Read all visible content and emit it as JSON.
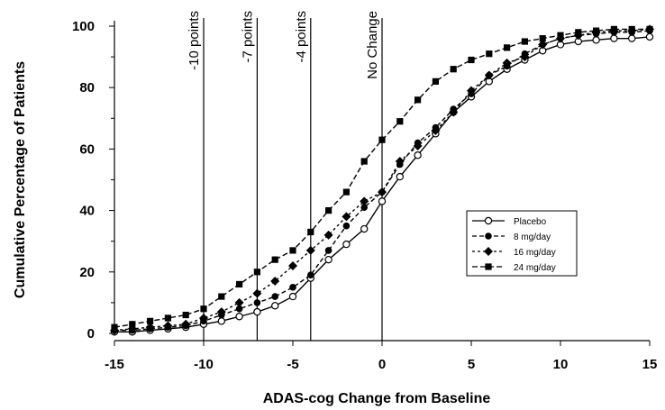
{
  "chart_data": {
    "type": "line",
    "title": "",
    "xlabel": "ADAS-cog Change from Baseline",
    "ylabel": "Cumulative Percentage of Patients",
    "xlim": [
      -15,
      15
    ],
    "ylim": [
      0,
      100
    ],
    "x_ticks": [
      -15,
      -10,
      -5,
      0,
      5,
      10,
      15
    ],
    "y_ticks": [
      0,
      20,
      40,
      60,
      80,
      100
    ],
    "grid": false,
    "legend_position": "right",
    "reference_lines": [
      {
        "x": -10,
        "label": "-10 points"
      },
      {
        "x": -7,
        "label": "-7 points"
      },
      {
        "x": -4,
        "label": "-4 points"
      },
      {
        "x": 0,
        "label": "No Change"
      }
    ],
    "x": [
      -15,
      -14,
      -13,
      -12,
      -11,
      -10,
      -9,
      -8,
      -7,
      -6,
      -5,
      -4,
      -3,
      -2,
      -1,
      0,
      1,
      2,
      3,
      4,
      5,
      6,
      7,
      8,
      9,
      10,
      11,
      12,
      13,
      14,
      15
    ],
    "series": [
      {
        "name": "Placebo",
        "marker": "open-circle",
        "values": [
          0.5,
          0.5,
          1,
          1.5,
          2,
          3,
          4,
          5.5,
          7,
          9,
          12,
          18,
          24,
          29,
          34,
          43,
          51,
          58,
          65,
          72,
          77,
          82,
          86,
          89,
          92,
          94,
          95,
          95.5,
          96,
          96,
          96.5
        ]
      },
      {
        "name": "8 mg/day",
        "marker": "filled-circle",
        "values": [
          1,
          1,
          1.5,
          2,
          2.5,
          4,
          6,
          8,
          10,
          12,
          15,
          19,
          27,
          35,
          41,
          46,
          55,
          62,
          67,
          73,
          78,
          84,
          87,
          91,
          94,
          96,
          97,
          97.5,
          98,
          98,
          98.5
        ]
      },
      {
        "name": "16 mg/day",
        "marker": "filled-diamond",
        "values": [
          1,
          1.5,
          2,
          2.5,
          3,
          5,
          7,
          10,
          13,
          17,
          22,
          27,
          32,
          38,
          43,
          46,
          56,
          61,
          66,
          72,
          79,
          84,
          88,
          90,
          94,
          96,
          97,
          98,
          98.5,
          98.5,
          99
        ]
      },
      {
        "name": "24 mg/day",
        "marker": "filled-square",
        "values": [
          2,
          3,
          4,
          5,
          6,
          8,
          12,
          16,
          20,
          24,
          27,
          33,
          40,
          46,
          56,
          63,
          69,
          76,
          82,
          86,
          89,
          91,
          93,
          95,
          96,
          97,
          98,
          98.5,
          99,
          99,
          99
        ]
      }
    ]
  }
}
